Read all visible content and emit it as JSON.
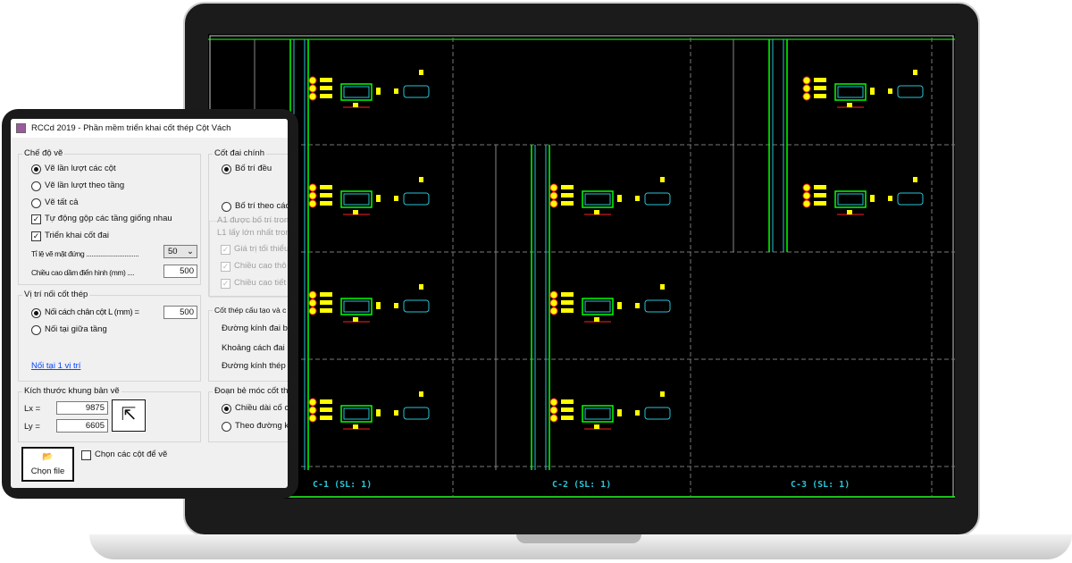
{
  "window": {
    "title": "RCCd 2019 - Phần mềm triển khai cốt thép Cột Vách"
  },
  "che_do_ve": {
    "label": "Chế độ vẽ",
    "options": [
      "Vẽ lần lượt các cột",
      "Vẽ lần lượt theo tầng",
      "Vẽ tất cả"
    ],
    "selected": 0,
    "auto_merge": "Tự động gộp các tầng giống nhau",
    "auto_merge_checked": true,
    "stirrups": "Triển khai cốt đai",
    "stirrups_checked": true,
    "scale_label": "Tỉ lệ vẽ mặt đứng ..............................",
    "scale_value": "50",
    "beam_height_label": "Chiều cao dầm điển hình (mm) ....",
    "beam_height_value": "500"
  },
  "vi_tri_noi": {
    "label": "Vị trí nối cốt thép",
    "options": [
      "Nối cách chân cột L (mm) =",
      "Nối tại giữa tầng"
    ],
    "selected": 0,
    "L_value": "500",
    "link": "Nối tại 1 vị trí"
  },
  "kich_thuoc": {
    "label": "Kích thước khung bản vẽ",
    "lx_label": "Lx =",
    "lx": "9875",
    "ly_label": "Ly =",
    "ly": "6605"
  },
  "choose_file": "Chọn file",
  "choose_columns": "Chọn các cột để vẽ",
  "choose_columns_checked": false,
  "cot_dai": {
    "label": "Cốt đai chính",
    "options": [
      "Bố trí đều",
      "Bố trí theo các"
    ],
    "selected": 0,
    "note1": "A1 được bố trí trong",
    "note2": "L1 lấy lớn nhất trong",
    "checks": [
      "Giá trị tối thiểu",
      "Chiều cao thô",
      "Chiều cao tiết"
    ]
  },
  "cau_tao": {
    "label": "Cốt thép cấu tạo và c",
    "items": [
      "Đường kính đai b",
      "Khoảng cách đai",
      "Đường kính thép c"
    ]
  },
  "doan_be_moc": {
    "label": "Đoạn bẻ móc cốt thé",
    "options": [
      "Chiều dài cố c",
      "Theo đường kí"
    ],
    "selected": 0
  },
  "cad": {
    "labels": [
      "C-1 (SL: 1)",
      "C-2 (SL: 1)",
      "C-3 (SL: 1)"
    ],
    "colors": {
      "frame": "#27c5d6",
      "rebar": "#00ff00",
      "text": "#ffff00",
      "dim": "#ff2020"
    }
  }
}
